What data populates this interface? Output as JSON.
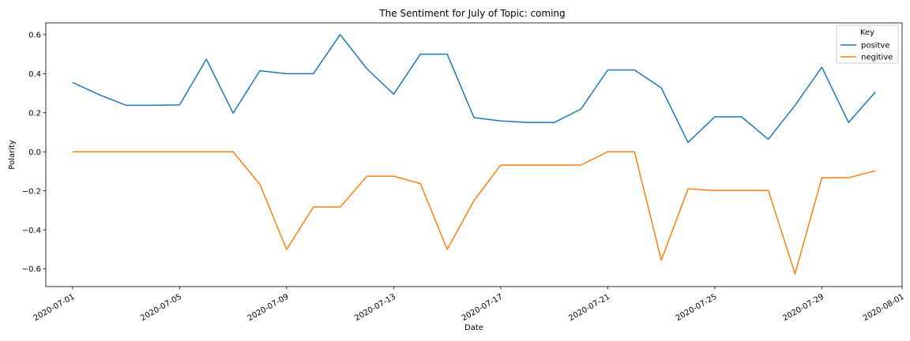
{
  "chart_data": {
    "type": "line",
    "title": "The Sentiment for July of Topic: coming",
    "xlabel": "Date",
    "ylabel": "Polarity",
    "x": [
      "2020-07-01",
      "2020-07-02",
      "2020-07-03",
      "2020-07-04",
      "2020-07-05",
      "2020-07-06",
      "2020-07-07",
      "2020-07-08",
      "2020-07-09",
      "2020-07-10",
      "2020-07-11",
      "2020-07-12",
      "2020-07-13",
      "2020-07-14",
      "2020-07-15",
      "2020-07-16",
      "2020-07-17",
      "2020-07-18",
      "2020-07-19",
      "2020-07-20",
      "2020-07-21",
      "2020-07-22",
      "2020-07-23",
      "2020-07-24",
      "2020-07-25",
      "2020-07-26",
      "2020-07-27",
      "2020-07-28",
      "2020-07-29",
      "2020-07-30",
      "2020-07-31"
    ],
    "x_ticks": [
      "2020-07-01",
      "2020-07-05",
      "2020-07-09",
      "2020-07-13",
      "2020-07-17",
      "2020-07-21",
      "2020-07-25",
      "2020-07-29",
      "2020-08-01"
    ],
    "xlim": [
      "2020-06-30",
      "2020-08-01"
    ],
    "y_ticks": [
      0.6,
      0.4,
      0.2,
      0.0,
      -0.2,
      -0.4,
      -0.6
    ],
    "y_tick_labels": [
      "0.6",
      "0.4",
      "0.2",
      "0.0",
      "−0.2",
      "−0.4",
      "−0.6"
    ],
    "ylim": [
      -0.69,
      0.66
    ],
    "grid": false,
    "legend": {
      "title": "Key",
      "position": "top-right"
    },
    "series": [
      {
        "name": "positve",
        "color": "#1f77b4",
        "values": [
          0.355,
          0.292,
          0.238,
          0.238,
          0.24,
          0.474,
          0.198,
          0.415,
          0.4,
          0.4,
          0.6,
          0.425,
          0.295,
          0.5,
          0.5,
          0.175,
          0.158,
          0.15,
          0.15,
          0.219,
          0.419,
          0.419,
          0.327,
          0.048,
          0.179,
          0.179,
          0.064,
          0.238,
          0.433,
          0.15,
          0.306
        ]
      },
      {
        "name": "negitive",
        "color": "#ff7f0e",
        "values": [
          0.0,
          0.0,
          0.0,
          0.0,
          0.0,
          0.0,
          0.0,
          -0.167,
          -0.5,
          -0.283,
          -0.283,
          -0.125,
          -0.125,
          -0.163,
          -0.5,
          -0.25,
          -0.068,
          -0.068,
          -0.068,
          -0.068,
          0.0,
          0.0,
          -0.555,
          -0.19,
          -0.198,
          -0.198,
          -0.198,
          -0.625,
          -0.133,
          -0.133,
          -0.097
        ]
      }
    ]
  }
}
